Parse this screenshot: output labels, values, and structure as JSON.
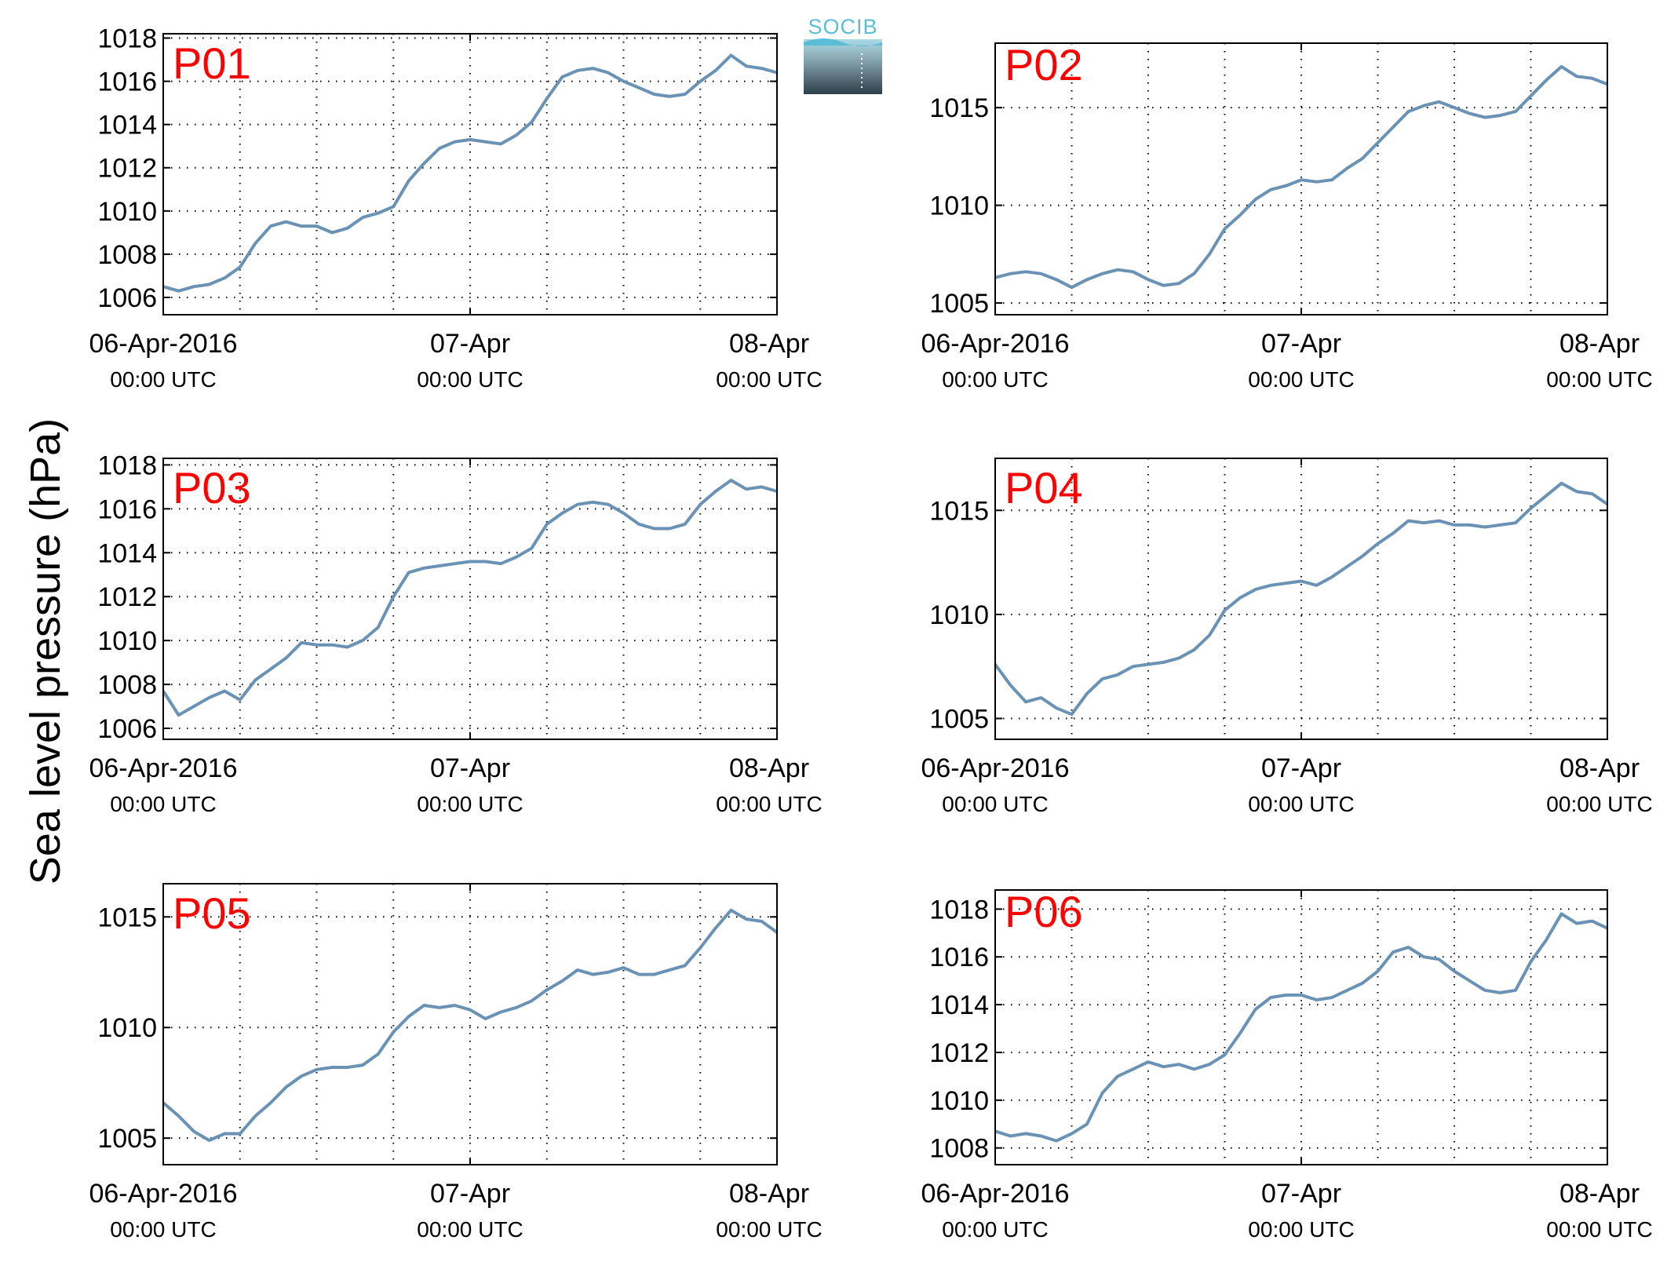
{
  "figure": {
    "ylabel": "Sea level pressure (hPa)",
    "logo_text": "SOCIB",
    "line_color": "#6a92b5",
    "label_color": "#ff0000"
  },
  "chart_data": [
    {
      "type": "line",
      "label": "P01",
      "ylim": [
        1005.2,
        1018.2
      ],
      "yticks": [
        1006,
        1008,
        1010,
        1012,
        1014,
        1016,
        1018
      ],
      "xlim": [
        0,
        2
      ],
      "xticks": [
        0,
        1,
        2
      ],
      "xticklabels": [
        [
          "06-Apr-2016",
          "00:00 UTC"
        ],
        [
          "07-Apr",
          "00:00 UTC"
        ],
        [
          "08-Apr",
          "00:00 UTC"
        ]
      ],
      "x_unit": "days since 06-Apr-2016 00:00 UTC",
      "grid": true,
      "x": [
        0,
        0.05,
        0.1,
        0.15,
        0.2,
        0.25,
        0.3,
        0.35,
        0.4,
        0.45,
        0.5,
        0.55,
        0.6,
        0.65,
        0.7,
        0.75,
        0.8,
        0.85,
        0.9,
        0.95,
        1.0,
        1.05,
        1.1,
        1.15,
        1.2,
        1.25,
        1.3,
        1.35,
        1.4,
        1.45,
        1.5,
        1.55,
        1.6,
        1.65,
        1.7,
        1.75,
        1.8,
        1.85,
        1.9,
        1.95,
        2.0
      ],
      "y": [
        1006.5,
        1006.3,
        1006.5,
        1006.6,
        1006.9,
        1007.4,
        1008.5,
        1009.3,
        1009.5,
        1009.3,
        1009.3,
        1009.0,
        1009.2,
        1009.7,
        1009.9,
        1010.2,
        1011.4,
        1012.2,
        1012.9,
        1013.2,
        1013.3,
        1013.2,
        1013.1,
        1013.5,
        1014.1,
        1015.2,
        1016.2,
        1016.5,
        1016.6,
        1016.4,
        1016.0,
        1015.7,
        1015.4,
        1015.3,
        1015.4,
        1016.0,
        1016.5,
        1017.2,
        1016.7,
        1016.6,
        1016.4
      ]
    },
    {
      "type": "line",
      "label": "P02",
      "ylim": [
        1004.4,
        1018.3
      ],
      "yticks": [
        1005,
        1010,
        1015
      ],
      "xlim": [
        0,
        2
      ],
      "xticks": [
        0,
        1,
        2
      ],
      "xticklabels": [
        [
          "06-Apr-2016",
          "00:00 UTC"
        ],
        [
          "07-Apr",
          "00:00 UTC"
        ],
        [
          "08-Apr",
          "00:00 UTC"
        ]
      ],
      "x_unit": "days since 06-Apr-2016 00:00 UTC",
      "grid": true,
      "x": [
        0,
        0.05,
        0.1,
        0.15,
        0.2,
        0.25,
        0.3,
        0.35,
        0.4,
        0.45,
        0.5,
        0.55,
        0.6,
        0.65,
        0.7,
        0.75,
        0.8,
        0.85,
        0.9,
        0.95,
        1.0,
        1.05,
        1.1,
        1.15,
        1.2,
        1.25,
        1.3,
        1.35,
        1.4,
        1.45,
        1.5,
        1.55,
        1.6,
        1.65,
        1.7,
        1.75,
        1.8,
        1.85,
        1.9,
        1.95,
        2.0
      ],
      "y": [
        1006.3,
        1006.5,
        1006.6,
        1006.5,
        1006.2,
        1005.8,
        1006.2,
        1006.5,
        1006.7,
        1006.6,
        1006.2,
        1005.9,
        1006.0,
        1006.5,
        1007.5,
        1008.8,
        1009.5,
        1010.3,
        1010.8,
        1011.0,
        1011.3,
        1011.2,
        1011.3,
        1011.9,
        1012.4,
        1013.2,
        1014.0,
        1014.8,
        1015.1,
        1015.3,
        1015.0,
        1014.7,
        1014.5,
        1014.6,
        1014.8,
        1015.6,
        1016.4,
        1017.1,
        1016.6,
        1016.5,
        1016.2
      ]
    },
    {
      "type": "line",
      "label": "P03",
      "ylim": [
        1005.5,
        1018.3
      ],
      "yticks": [
        1006,
        1008,
        1010,
        1012,
        1014,
        1016,
        1018
      ],
      "xlim": [
        0,
        2
      ],
      "xticks": [
        0,
        1,
        2
      ],
      "xticklabels": [
        [
          "06-Apr-2016",
          "00:00 UTC"
        ],
        [
          "07-Apr",
          "00:00 UTC"
        ],
        [
          "08-Apr",
          "00:00 UTC"
        ]
      ],
      "x_unit": "days since 06-Apr-2016 00:00 UTC",
      "grid": true,
      "x": [
        0,
        0.05,
        0.1,
        0.15,
        0.2,
        0.25,
        0.3,
        0.35,
        0.4,
        0.45,
        0.5,
        0.55,
        0.6,
        0.65,
        0.7,
        0.75,
        0.8,
        0.85,
        0.9,
        0.95,
        1.0,
        1.05,
        1.1,
        1.15,
        1.2,
        1.25,
        1.3,
        1.35,
        1.4,
        1.45,
        1.5,
        1.55,
        1.6,
        1.65,
        1.7,
        1.75,
        1.8,
        1.85,
        1.9,
        1.95,
        2.0
      ],
      "y": [
        1007.7,
        1006.6,
        1007.0,
        1007.4,
        1007.7,
        1007.3,
        1008.2,
        1008.7,
        1009.2,
        1009.9,
        1009.8,
        1009.8,
        1009.7,
        1010.0,
        1010.6,
        1012.0,
        1013.1,
        1013.3,
        1013.4,
        1013.5,
        1013.6,
        1013.6,
        1013.5,
        1013.8,
        1014.2,
        1015.3,
        1015.8,
        1016.2,
        1016.3,
        1016.2,
        1015.8,
        1015.3,
        1015.1,
        1015.1,
        1015.3,
        1016.2,
        1016.8,
        1017.3,
        1016.9,
        1017.0,
        1016.8
      ]
    },
    {
      "type": "line",
      "label": "P04",
      "ylim": [
        1004.0,
        1017.5
      ],
      "yticks": [
        1005,
        1010,
        1015
      ],
      "xlim": [
        0,
        2
      ],
      "xticks": [
        0,
        1,
        2
      ],
      "xticklabels": [
        [
          "06-Apr-2016",
          "00:00 UTC"
        ],
        [
          "07-Apr",
          "00:00 UTC"
        ],
        [
          "08-Apr",
          "00:00 UTC"
        ]
      ],
      "x_unit": "days since 06-Apr-2016 00:00 UTC",
      "grid": true,
      "x": [
        0,
        0.05,
        0.1,
        0.15,
        0.2,
        0.25,
        0.3,
        0.35,
        0.4,
        0.45,
        0.5,
        0.55,
        0.6,
        0.65,
        0.7,
        0.75,
        0.8,
        0.85,
        0.9,
        0.95,
        1.0,
        1.05,
        1.1,
        1.15,
        1.2,
        1.25,
        1.3,
        1.35,
        1.4,
        1.45,
        1.5,
        1.55,
        1.6,
        1.65,
        1.7,
        1.75,
        1.8,
        1.85,
        1.9,
        1.95,
        2.0
      ],
      "y": [
        1007.6,
        1006.6,
        1005.8,
        1006.0,
        1005.5,
        1005.2,
        1006.2,
        1006.9,
        1007.1,
        1007.5,
        1007.6,
        1007.7,
        1007.9,
        1008.3,
        1009.0,
        1010.2,
        1010.8,
        1011.2,
        1011.4,
        1011.5,
        1011.6,
        1011.4,
        1011.8,
        1012.3,
        1012.8,
        1013.4,
        1013.9,
        1014.5,
        1014.4,
        1014.5,
        1014.3,
        1014.3,
        1014.2,
        1014.3,
        1014.4,
        1015.1,
        1015.7,
        1016.3,
        1015.9,
        1015.8,
        1015.3
      ]
    },
    {
      "type": "line",
      "label": "P05",
      "ylim": [
        1003.8,
        1016.5
      ],
      "yticks": [
        1005,
        1010,
        1015
      ],
      "xlim": [
        0,
        2
      ],
      "xticks": [
        0,
        1,
        2
      ],
      "xticklabels": [
        [
          "06-Apr-2016",
          "00:00 UTC"
        ],
        [
          "07-Apr",
          "00:00 UTC"
        ],
        [
          "08-Apr",
          "00:00 UTC"
        ]
      ],
      "x_unit": "days since 06-Apr-2016 00:00 UTC",
      "grid": true,
      "x": [
        0,
        0.05,
        0.1,
        0.15,
        0.2,
        0.25,
        0.3,
        0.35,
        0.4,
        0.45,
        0.5,
        0.55,
        0.6,
        0.65,
        0.7,
        0.75,
        0.8,
        0.85,
        0.9,
        0.95,
        1.0,
        1.05,
        1.1,
        1.15,
        1.2,
        1.25,
        1.3,
        1.35,
        1.4,
        1.45,
        1.5,
        1.55,
        1.6,
        1.65,
        1.7,
        1.75,
        1.8,
        1.85,
        1.9,
        1.95,
        2.0
      ],
      "y": [
        1006.6,
        1006.0,
        1005.3,
        1004.9,
        1005.2,
        1005.2,
        1006.0,
        1006.6,
        1007.3,
        1007.8,
        1008.1,
        1008.2,
        1008.2,
        1008.3,
        1008.8,
        1009.8,
        1010.5,
        1011.0,
        1010.9,
        1011.0,
        1010.8,
        1010.4,
        1010.7,
        1010.9,
        1011.2,
        1011.7,
        1012.1,
        1012.6,
        1012.4,
        1012.5,
        1012.7,
        1012.4,
        1012.4,
        1012.6,
        1012.8,
        1013.6,
        1014.5,
        1015.3,
        1014.9,
        1014.8,
        1014.3
      ]
    },
    {
      "type": "line",
      "label": "P06",
      "ylim": [
        1007.3,
        1018.8
      ],
      "yticks": [
        1008,
        1010,
        1012,
        1014,
        1016,
        1018
      ],
      "xlim": [
        0,
        2
      ],
      "xticks": [
        0,
        1,
        2
      ],
      "xticklabels": [
        [
          "06-Apr-2016",
          "00:00 UTC"
        ],
        [
          "07-Apr",
          "00:00 UTC"
        ],
        [
          "08-Apr",
          "00:00 UTC"
        ]
      ],
      "x_unit": "days since 06-Apr-2016 00:00 UTC",
      "grid": true,
      "x": [
        0,
        0.05,
        0.1,
        0.15,
        0.2,
        0.25,
        0.3,
        0.35,
        0.4,
        0.45,
        0.5,
        0.55,
        0.6,
        0.65,
        0.7,
        0.75,
        0.8,
        0.85,
        0.9,
        0.95,
        1.0,
        1.05,
        1.1,
        1.15,
        1.2,
        1.25,
        1.3,
        1.35,
        1.4,
        1.45,
        1.5,
        1.55,
        1.6,
        1.65,
        1.7,
        1.75,
        1.8,
        1.85,
        1.9,
        1.95,
        2.0
      ],
      "y": [
        1008.7,
        1008.5,
        1008.6,
        1008.5,
        1008.3,
        1008.6,
        1009.0,
        1010.3,
        1011.0,
        1011.3,
        1011.6,
        1011.4,
        1011.5,
        1011.3,
        1011.5,
        1011.9,
        1012.8,
        1013.8,
        1014.3,
        1014.4,
        1014.4,
        1014.2,
        1014.3,
        1014.6,
        1014.9,
        1015.4,
        1016.2,
        1016.4,
        1016.0,
        1015.9,
        1015.4,
        1015.0,
        1014.6,
        1014.5,
        1014.6,
        1015.8,
        1016.7,
        1017.8,
        1017.4,
        1017.5,
        1017.2
      ]
    }
  ]
}
